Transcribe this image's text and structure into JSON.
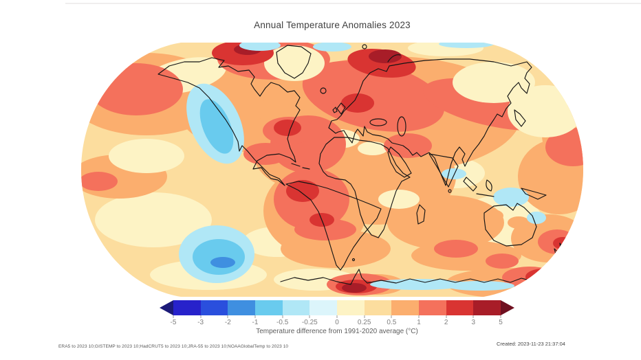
{
  "title": "Annual Temperature Anomalies 2023",
  "map": {
    "projection": "robinson-world-map",
    "base_color": "#fcdd9e",
    "coastline_color": "#141414",
    "description": "Filled temperature-anomaly contours for 2023; warm (orange/red) anomalies dominate globally, cool (blue) anomalies in the eastern North Pacific, southeast Pacific, around Australia and parts of the Antarctic coast"
  },
  "colorbar": {
    "label": "Temperature difference from 1991-2020 average (°C)",
    "ticks": [
      "-5",
      "-3",
      "-2",
      "-1",
      "-0.5",
      "-0.25",
      "0",
      "0.25",
      "0.5",
      "1",
      "2",
      "3",
      "5"
    ],
    "segments": [
      "#2722cb",
      "#2a4fdd",
      "#3f8fe0",
      "#69cbee",
      "#b0e7f6",
      "#dcf5fb",
      "#fdf3c5",
      "#fcdd9e",
      "#fbae6e",
      "#f4715c",
      "#d93432",
      "#a81d28"
    ],
    "left_arrow_color": "#1c1a78",
    "right_arrow_color": "#6f1020"
  },
  "footer": {
    "sources": "ERA5 to 2023 10;GISTEMP to 2023 10;HadCRUT5 to 2023 10;JRA-55 to 2023 10;NOAAGlobalTemp to 2023 10",
    "created": "Created: 2023-11-23 21:37:04"
  }
}
